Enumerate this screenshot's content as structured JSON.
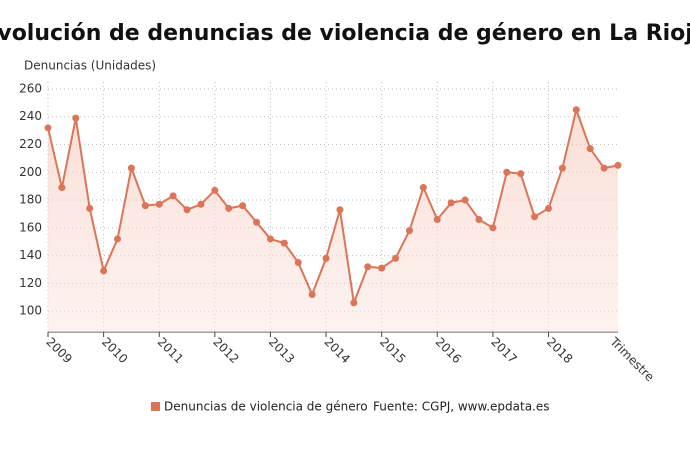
{
  "chart_data": {
    "type": "line",
    "title": "Evolución de denuncias de violencia de género en La Rioja",
    "y_label": "Denuncias (Unidades)",
    "x_label": "Trimestre",
    "source": "Fuente: CGPJ, www.epdata.es",
    "categories": [
      "2009",
      null,
      null,
      null,
      "2010",
      null,
      null,
      null,
      "2011",
      null,
      null,
      null,
      "2012",
      null,
      null,
      null,
      "2013",
      null,
      null,
      null,
      "2014",
      null,
      null,
      null,
      "2015",
      null,
      null,
      null,
      "2016",
      null,
      null,
      null,
      "2017",
      null,
      null,
      null,
      "2018",
      null,
      null,
      null,
      null,
      null
    ],
    "series": [
      {
        "name": "Denuncias de violencia de género",
        "color": "#dc7458",
        "values": [
          232,
          189,
          239,
          174,
          129,
          152,
          203,
          176,
          177,
          183,
          173,
          177,
          187,
          174,
          176,
          164,
          152,
          149,
          135,
          112,
          138,
          173,
          106,
          132,
          131,
          138,
          158,
          189,
          166,
          178,
          180,
          166,
          160,
          200,
          199,
          168,
          174,
          203,
          245,
          217,
          203,
          205
        ]
      }
    ],
    "ylim": [
      85,
      265
    ],
    "yticks": [
      100,
      120,
      140,
      160,
      180,
      200,
      220,
      240,
      260
    ],
    "grid": true
  }
}
